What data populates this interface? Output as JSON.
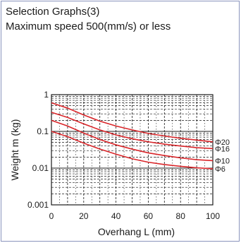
{
  "header": {
    "title": "Selection Graphs(3)",
    "subtitle": "Maximum speed 500(mm/s) or less"
  },
  "colors": {
    "curve": "#d9262a",
    "grid": "#1a1a1a",
    "frame": "#8a94bd"
  },
  "chart_data": {
    "type": "line",
    "title": "",
    "xlabel": "Overhang L (mm)",
    "ylabel": "Weight m (kg)",
    "xlim": [
      0,
      100
    ],
    "ylim": [
      0.001,
      1
    ],
    "yscale": "log",
    "grid": true,
    "x_ticks": [
      "0",
      "20",
      "40",
      "60",
      "80",
      "100"
    ],
    "y_ticks": [
      "0.001",
      "0.01",
      "0.1",
      "1"
    ],
    "x": [
      0,
      10,
      20,
      30,
      40,
      50,
      60,
      70,
      80,
      90,
      100
    ],
    "series": [
      {
        "name": "Φ20",
        "values": [
          0.6,
          0.43,
          0.28,
          0.19,
          0.14,
          0.11,
          0.088,
          0.075,
          0.065,
          0.058,
          0.052
        ]
      },
      {
        "name": "Φ16",
        "values": [
          0.33,
          0.24,
          0.16,
          0.11,
          0.08,
          0.063,
          0.052,
          0.045,
          0.04,
          0.036,
          0.034
        ]
      },
      {
        "name": "Φ10",
        "values": [
          0.2,
          0.14,
          0.09,
          0.06,
          0.043,
          0.033,
          0.026,
          0.022,
          0.019,
          0.017,
          0.016
        ]
      },
      {
        "name": "Φ6",
        "values": [
          0.1,
          0.072,
          0.048,
          0.033,
          0.024,
          0.018,
          0.0145,
          0.0125,
          0.0112,
          0.0102,
          0.0096
        ]
      }
    ]
  }
}
